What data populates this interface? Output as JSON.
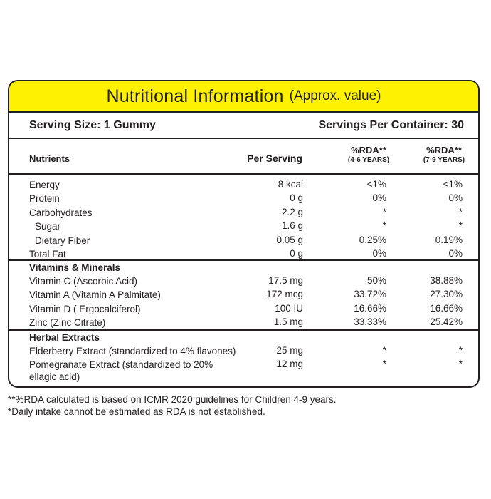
{
  "title": {
    "main": "Nutritional Information",
    "sub": "(Approx. value)"
  },
  "serving": {
    "size": "Serving Size: 1 Gummy",
    "per_container": "Servings Per Container: 30"
  },
  "header": {
    "nutrients": "Nutrients",
    "per_serving": "Per Serving",
    "rda1_line1": "%RDA**",
    "rda1_line2": "(4-6 YEARS)",
    "rda2_line1": "%RDA**",
    "rda2_line2": "(7-9 YEARS)"
  },
  "basic": [
    {
      "name": "Energy",
      "per": "8 kcal",
      "r1": "<1%",
      "r2": "<1%"
    },
    {
      "name": "Protein",
      "per": "0 g",
      "r1": "0%",
      "r2": "0%"
    },
    {
      "name": "Carbohydrates",
      "per": "2.2 g",
      "r1": "*",
      "r2": "*"
    },
    {
      "name": "Sugar",
      "per": "1.6 g",
      "r1": "*",
      "r2": "*"
    },
    {
      "name": "Dietary Fiber",
      "per": "0.05 g",
      "r1": "0.25%",
      "r2": "0.19%"
    },
    {
      "name": "Total Fat",
      "per": "0 g",
      "r1": "0%",
      "r2": "0%"
    }
  ],
  "vitamins": {
    "title": "Vitamins & Minerals",
    "rows": [
      {
        "name": "Vitamin C (Ascorbic Acid)",
        "per": "17.5 mg",
        "r1": "50%",
        "r2": "38.88%"
      },
      {
        "name": "Vitamin A (Vitamin A Palmitate)",
        "per": "172 mcg",
        "r1": "33.72%",
        "r2": "27.30%"
      },
      {
        "name": "Vitamin D ( Ergocalciferol)",
        "per": "100 IU",
        "r1": "16.66%",
        "r2": "16.66%"
      },
      {
        "name": "Zinc (Zinc Citrate)",
        "per": "1.5 mg",
        "r1": "33.33%",
        "r2": "25.42%"
      }
    ]
  },
  "herbal": {
    "title": "Herbal Extracts",
    "rows": [
      {
        "name": "Elderberry Extract (standardized to 4% flavones)",
        "per": "25 mg",
        "r1": "*",
        "r2": "*"
      },
      {
        "name": "Pomegranate Extract (standardized to 20% ellagic acid)",
        "per": "12 mg",
        "r1": "*",
        "r2": "*"
      }
    ]
  },
  "footnotes": {
    "line1": "**%RDA calculated is based on ICMR 2020 guidelines for Children 4-9 years.",
    "line2": "*Daily intake cannot be estimated as RDA is not established."
  },
  "colors": {
    "title_bar": "#fff200",
    "text": "#231f20"
  }
}
